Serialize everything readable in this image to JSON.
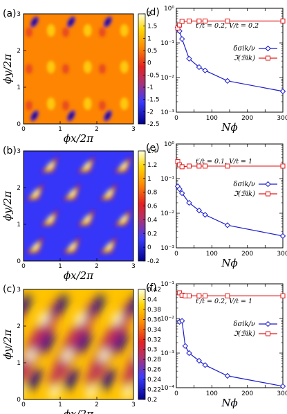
{
  "chart_data": [
    {
      "type": "heatmap",
      "panel": "(a)",
      "xlabel": "ϕx/2π",
      "ylabel": "ϕy/2π",
      "xticks": [
        "0",
        "1",
        "2",
        "3"
      ],
      "yticks": [
        "0",
        "1",
        "2",
        "3"
      ],
      "xlim": [
        0,
        3
      ],
      "ylim": [
        0,
        3
      ],
      "colorbar": {
        "min": -2.5,
        "max": 2.0,
        "ticks": [
          "2",
          "1.5",
          "1",
          "0.5",
          "0",
          "-0.5",
          "-1",
          "-1.5",
          "-2",
          "-2.5"
        ],
        "values": [
          2,
          1.5,
          1,
          0.5,
          0,
          -0.5,
          -1,
          -1.5,
          -2,
          -2.5
        ]
      },
      "colormap": "hot-blue",
      "features": {
        "background": 0.6,
        "dark_spots": {
          "x": [
            0.3,
            1.3,
            2.3,
            0.3,
            1.3,
            2.3
          ],
          "y": [
            2.78,
            2.78,
            2.78,
            0.22,
            0.22,
            0.22
          ],
          "value": -2.5
        }
      }
    },
    {
      "type": "heatmap",
      "panel": "(b)",
      "xlabel": "ϕx/2π",
      "ylabel": "ϕy/2π",
      "xticks": [
        "0",
        "1",
        "2",
        "3"
      ],
      "yticks": [
        "0",
        "1",
        "2",
        "3"
      ],
      "xlim": [
        0,
        3
      ],
      "ylim": [
        0,
        3
      ],
      "colorbar": {
        "min": -0.2,
        "max": 1.4,
        "ticks": [
          "1.4",
          "1.2",
          "1",
          "0.8",
          "0.6",
          "0.4",
          "0.2",
          "0",
          "-0.2"
        ],
        "values": [
          1.4,
          1.2,
          1,
          0.8,
          0.6,
          0.4,
          0.2,
          0,
          -0.2
        ]
      },
      "colormap": "hot-blue",
      "features": {
        "background": 0.1,
        "bright_spots": {
          "x": [
            0.7,
            1.7,
            2.7,
            0.3,
            1.3,
            2.3,
            0.7,
            1.7,
            2.7,
            0.3,
            1.3,
            2.3
          ],
          "y": [
            2.6,
            2.6,
            2.6,
            1.85,
            1.85,
            1.85,
            1.15,
            1.15,
            1.15,
            0.4,
            0.4,
            0.4
          ],
          "value": 1.4
        }
      }
    },
    {
      "type": "heatmap",
      "panel": "(c)",
      "xlabel": "ϕx/2π",
      "ylabel": "ϕy/2π",
      "xticks": [
        "0",
        "1",
        "2",
        "3"
      ],
      "yticks": [
        "0",
        "1",
        "2",
        "3"
      ],
      "xlim": [
        0,
        3
      ],
      "ylim": [
        0,
        3
      ],
      "colorbar": {
        "min": 0.2,
        "max": 0.42,
        "ticks": [
          "0.42",
          "0.4",
          "0.38",
          "0.36",
          "0.34",
          "0.32",
          "0.3",
          "0.28",
          "0.26",
          "0.24",
          "0.22",
          "0.2"
        ],
        "values": [
          0.42,
          0.4,
          0.38,
          0.36,
          0.34,
          0.32,
          0.3,
          0.28,
          0.26,
          0.24,
          0.22,
          0.2
        ]
      },
      "colormap": "hot-blue",
      "features": {
        "background": 0.38,
        "stripes": "diagonal"
      }
    },
    {
      "type": "line",
      "panel": "(d)",
      "xlabel": "Nϕ",
      "xlim": [
        0,
        300
      ],
      "ylim": [
        0.001,
        1
      ],
      "yscale": "log",
      "xticks": [
        "0",
        "50",
        "100",
        "150",
        "200",
        "250",
        "300"
      ],
      "yticks": [
        "10⁻³",
        "10⁻²",
        "10⁻¹",
        "10⁰"
      ],
      "annotation": "t′/t = 0.2, V/t = 0.2",
      "legend_position": "upper-right",
      "series": [
        {
          "name": "δσik/ν",
          "color": "#1a1acc",
          "marker": "diamond",
          "x": [
            4,
            9,
            16,
            36,
            64,
            81,
            144,
            300
          ],
          "y": [
            0.28,
            0.22,
            0.13,
            0.035,
            0.02,
            0.016,
            0.008,
            0.004
          ]
        },
        {
          "name": "ℑ(ℬik)",
          "color": "#e01a1a",
          "marker": "square",
          "x": [
            4,
            9,
            16,
            36,
            64,
            81,
            144,
            300
          ],
          "y": [
            0.27,
            0.33,
            0.42,
            0.43,
            0.43,
            0.43,
            0.43,
            0.43
          ]
        }
      ]
    },
    {
      "type": "line",
      "panel": "(e)",
      "xlabel": "Nϕ",
      "xlim": [
        0,
        300
      ],
      "ylim": [
        0.001,
        1
      ],
      "yscale": "log",
      "xticks": [
        "0",
        "50",
        "100",
        "150",
        "200",
        "250",
        "300"
      ],
      "yticks": [
        "10⁻³",
        "10⁻²",
        "10⁻¹",
        "10⁰"
      ],
      "annotation": "t′/t = 0.1, V/t = 1",
      "legend_position": "upper-right",
      "series": [
        {
          "name": "δσik/ν",
          "color": "#1a1acc",
          "marker": "diamond",
          "x": [
            4,
            9,
            16,
            36,
            64,
            81,
            144,
            300
          ],
          "y": [
            0.06,
            0.05,
            0.038,
            0.02,
            0.012,
            0.009,
            0.0045,
            0.0022
          ]
        },
        {
          "name": "ℑ(ℬik)",
          "color": "#e01a1a",
          "marker": "square",
          "x": [
            4,
            9,
            16,
            36,
            64,
            81,
            144,
            300
          ],
          "y": [
            0.31,
            0.25,
            0.22,
            0.23,
            0.23,
            0.23,
            0.23,
            0.23
          ]
        }
      ]
    },
    {
      "type": "line",
      "panel": "(f)",
      "xlabel": "Nϕ",
      "xlim": [
        0,
        300
      ],
      "ylim": [
        0.0001,
        0.1
      ],
      "yscale": "log",
      "xticks": [
        "0",
        "50",
        "100",
        "150",
        "200",
        "250",
        "300"
      ],
      "yticks": [
        "10⁻⁴",
        "10⁻³",
        "10⁻²",
        "10⁻¹"
      ],
      "annotation": "t′/t = 0.2, V/t = 1",
      "legend_position": "upper-right",
      "series": [
        {
          "name": "δσik/ν",
          "color": "#1a1acc",
          "marker": "diamond",
          "x": [
            9,
            16,
            25,
            36,
            64,
            81,
            144,
            300
          ],
          "y": [
            0.008,
            0.0085,
            0.0016,
            0.001,
            0.0006,
            0.00045,
            0.00022,
            0.00011
          ]
        },
        {
          "name": "ℑ(ℬik)",
          "color": "#e01a1a",
          "marker": "square",
          "x": [
            9,
            16,
            25,
            36,
            64,
            81,
            144,
            300
          ],
          "y": [
            0.055,
            0.047,
            0.045,
            0.045,
            0.045,
            0.045,
            0.045,
            0.045
          ]
        }
      ]
    }
  ]
}
